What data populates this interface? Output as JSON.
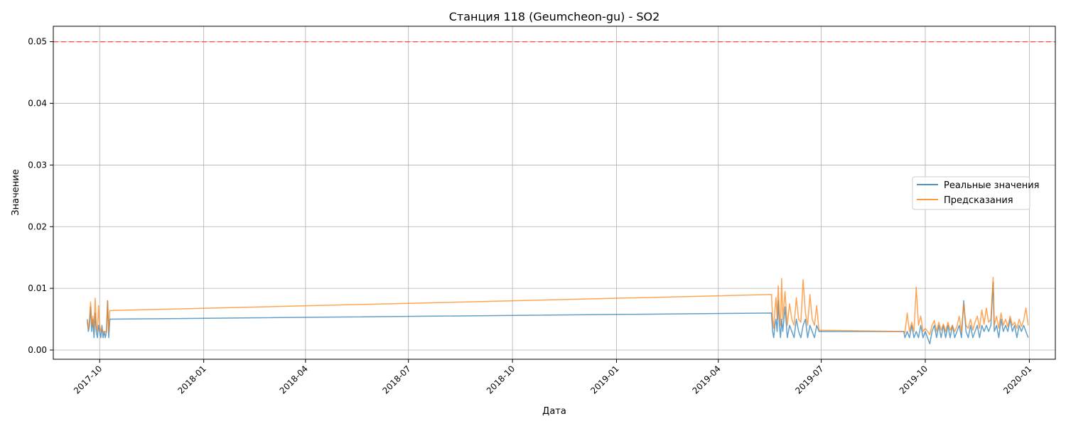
{
  "chart_data": {
    "type": "line",
    "title": "Станция 118 (Geumcheon-gu) - SO2",
    "xlabel": "Дата",
    "ylabel": "Значение",
    "ylim": [
      -0.0015,
      0.0525
    ],
    "xlim": [
      "2017-08-21",
      "2020-01-24"
    ],
    "x_ticks": [
      "2017-10",
      "2018-01",
      "2018-04",
      "2018-07",
      "2018-10",
      "2019-01",
      "2019-04",
      "2019-07",
      "2019-10",
      "2020-01"
    ],
    "x_tick_dates": [
      "2017-10-01",
      "2018-01-01",
      "2018-04-01",
      "2018-07-01",
      "2018-10-01",
      "2019-01-01",
      "2019-04-01",
      "2019-07-01",
      "2019-10-01",
      "2020-01-01"
    ],
    "y_ticks": [
      "0.00",
      "0.01",
      "0.02",
      "0.03",
      "0.04",
      "0.05"
    ],
    "y_tick_values": [
      0,
      0.01,
      0.02,
      0.03,
      0.04,
      0.05
    ],
    "grid": true,
    "legend_position": "right",
    "threshold": {
      "value": 0.05,
      "color": "#ff4040"
    },
    "series": [
      {
        "name": "Реальные значения",
        "color": "#1f77b4",
        "points": [
          [
            "2017-09-20",
            0.005
          ],
          [
            "2017-09-21",
            0.003
          ],
          [
            "2017-09-22",
            0.004
          ],
          [
            "2017-09-23",
            0.007
          ],
          [
            "2017-09-24",
            0.003
          ],
          [
            "2017-09-25",
            0.005
          ],
          [
            "2017-09-26",
            0.002
          ],
          [
            "2017-09-27",
            0.006
          ],
          [
            "2017-09-28",
            0.003
          ],
          [
            "2017-09-29",
            0.002
          ],
          [
            "2017-09-30",
            0.004
          ],
          [
            "2017-10-01",
            0.003
          ],
          [
            "2017-10-02",
            0.002
          ],
          [
            "2017-10-03",
            0.004
          ],
          [
            "2017-10-04",
            0.002
          ],
          [
            "2017-10-05",
            0.003
          ],
          [
            "2017-10-06",
            0.002
          ],
          [
            "2017-10-07",
            0.003
          ],
          [
            "2017-10-08",
            0.008
          ],
          [
            "2017-10-09",
            0.002
          ],
          [
            "2017-10-10",
            0.005
          ],
          [
            "2019-05-18",
            0.006
          ],
          [
            "2019-05-19",
            0.003
          ],
          [
            "2019-05-20",
            0.002
          ],
          [
            "2019-05-21",
            0.004
          ],
          [
            "2019-05-22",
            0.005
          ],
          [
            "2019-05-23",
            0.003
          ],
          [
            "2019-05-24",
            0.008
          ],
          [
            "2019-05-25",
            0.004
          ],
          [
            "2019-05-26",
            0.002
          ],
          [
            "2019-05-27",
            0.005
          ],
          [
            "2019-05-28",
            0.003
          ],
          [
            "2019-05-30",
            0.007
          ],
          [
            "2019-06-01",
            0.002
          ],
          [
            "2019-06-03",
            0.004
          ],
          [
            "2019-06-05",
            0.003
          ],
          [
            "2019-06-07",
            0.002
          ],
          [
            "2019-06-09",
            0.005
          ],
          [
            "2019-06-11",
            0.003
          ],
          [
            "2019-06-13",
            0.002
          ],
          [
            "2019-06-15",
            0.004
          ],
          [
            "2019-06-17",
            0.005
          ],
          [
            "2019-06-19",
            0.002
          ],
          [
            "2019-06-21",
            0.004
          ],
          [
            "2019-06-23",
            0.003
          ],
          [
            "2019-06-25",
            0.002
          ],
          [
            "2019-06-27",
            0.004
          ],
          [
            "2019-06-29",
            0.003
          ],
          [
            "2019-09-12",
            0.003
          ],
          [
            "2019-09-13",
            0.002
          ],
          [
            "2019-09-15",
            0.003
          ],
          [
            "2019-09-17",
            0.002
          ],
          [
            "2019-09-19",
            0.004
          ],
          [
            "2019-09-21",
            0.002
          ],
          [
            "2019-09-23",
            0.003
          ],
          [
            "2019-09-25",
            0.002
          ],
          [
            "2019-09-27",
            0.004
          ],
          [
            "2019-09-29",
            0.002
          ],
          [
            "2019-10-01",
            0.003
          ],
          [
            "2019-10-03",
            0.002
          ],
          [
            "2019-10-05",
            0.001
          ],
          [
            "2019-10-07",
            0.003
          ],
          [
            "2019-10-09",
            0.004
          ],
          [
            "2019-10-11",
            0.002
          ],
          [
            "2019-10-13",
            0.004
          ],
          [
            "2019-10-15",
            0.002
          ],
          [
            "2019-10-17",
            0.004
          ],
          [
            "2019-10-19",
            0.002
          ],
          [
            "2019-10-21",
            0.004
          ],
          [
            "2019-10-23",
            0.002
          ],
          [
            "2019-10-25",
            0.004
          ],
          [
            "2019-10-27",
            0.002
          ],
          [
            "2019-10-29",
            0.003
          ],
          [
            "2019-10-31",
            0.004
          ],
          [
            "2019-11-02",
            0.002
          ],
          [
            "2019-11-04",
            0.008
          ],
          [
            "2019-11-06",
            0.003
          ],
          [
            "2019-11-08",
            0.002
          ],
          [
            "2019-11-10",
            0.004
          ],
          [
            "2019-11-12",
            0.002
          ],
          [
            "2019-11-14",
            0.003
          ],
          [
            "2019-11-16",
            0.004
          ],
          [
            "2019-11-18",
            0.002
          ],
          [
            "2019-11-20",
            0.004
          ],
          [
            "2019-11-22",
            0.003
          ],
          [
            "2019-11-24",
            0.004
          ],
          [
            "2019-11-26",
            0.003
          ],
          [
            "2019-11-28",
            0.004
          ],
          [
            "2019-11-30",
            0.011
          ],
          [
            "2019-12-01",
            0.003
          ],
          [
            "2019-12-03",
            0.004
          ],
          [
            "2019-12-05",
            0.002
          ],
          [
            "2019-12-07",
            0.005
          ],
          [
            "2019-12-09",
            0.003
          ],
          [
            "2019-12-11",
            0.004
          ],
          [
            "2019-12-13",
            0.003
          ],
          [
            "2019-12-15",
            0.005
          ],
          [
            "2019-12-17",
            0.003
          ],
          [
            "2019-12-19",
            0.004
          ],
          [
            "2019-12-21",
            0.002
          ],
          [
            "2019-12-23",
            0.004
          ],
          [
            "2019-12-25",
            0.003
          ],
          [
            "2019-12-27",
            0.004
          ],
          [
            "2019-12-29",
            0.003
          ],
          [
            "2019-12-31",
            0.002
          ]
        ]
      },
      {
        "name": "Предсказания",
        "color": "#ff7f0e",
        "points": [
          [
            "2017-09-20",
            0.0045
          ],
          [
            "2017-09-21",
            0.0035
          ],
          [
            "2017-09-22",
            0.005
          ],
          [
            "2017-09-23",
            0.0078
          ],
          [
            "2017-09-24",
            0.004
          ],
          [
            "2017-09-25",
            0.0055
          ],
          [
            "2017-09-26",
            0.0035
          ],
          [
            "2017-09-27",
            0.0084
          ],
          [
            "2017-09-28",
            0.004
          ],
          [
            "2017-09-29",
            0.003
          ],
          [
            "2017-09-30",
            0.0072
          ],
          [
            "2017-10-01",
            0.004
          ],
          [
            "2017-10-02",
            0.003
          ],
          [
            "2017-10-03",
            0.0035
          ],
          [
            "2017-10-04",
            0.003
          ],
          [
            "2017-10-05",
            0.0028
          ],
          [
            "2017-10-06",
            0.003
          ],
          [
            "2017-10-07",
            0.0028
          ],
          [
            "2017-10-08",
            0.008
          ],
          [
            "2017-10-09",
            0.003
          ],
          [
            "2017-10-10",
            0.0064
          ],
          [
            "2019-05-18",
            0.009
          ],
          [
            "2019-05-19",
            0.005
          ],
          [
            "2019-05-20",
            0.0035
          ],
          [
            "2019-05-21",
            0.0065
          ],
          [
            "2019-05-22",
            0.0085
          ],
          [
            "2019-05-23",
            0.005
          ],
          [
            "2019-05-24",
            0.0104
          ],
          [
            "2019-05-25",
            0.006
          ],
          [
            "2019-05-26",
            0.004
          ],
          [
            "2019-05-27",
            0.0116
          ],
          [
            "2019-05-28",
            0.005
          ],
          [
            "2019-05-30",
            0.0095
          ],
          [
            "2019-06-01",
            0.004
          ],
          [
            "2019-06-03",
            0.0075
          ],
          [
            "2019-06-05",
            0.005
          ],
          [
            "2019-06-07",
            0.004
          ],
          [
            "2019-06-09",
            0.0085
          ],
          [
            "2019-06-11",
            0.005
          ],
          [
            "2019-06-13",
            0.0045
          ],
          [
            "2019-06-15",
            0.0114
          ],
          [
            "2019-06-17",
            0.006
          ],
          [
            "2019-06-19",
            0.004
          ],
          [
            "2019-06-21",
            0.009
          ],
          [
            "2019-06-23",
            0.005
          ],
          [
            "2019-06-25",
            0.004
          ],
          [
            "2019-06-27",
            0.0072
          ],
          [
            "2019-06-29",
            0.0032
          ],
          [
            "2019-09-12",
            0.003
          ],
          [
            "2019-09-13",
            0.0028
          ],
          [
            "2019-09-15",
            0.006
          ],
          [
            "2019-09-17",
            0.003
          ],
          [
            "2019-09-19",
            0.0045
          ],
          [
            "2019-09-21",
            0.003
          ],
          [
            "2019-09-23",
            0.0102
          ],
          [
            "2019-09-25",
            0.004
          ],
          [
            "2019-09-27",
            0.0055
          ],
          [
            "2019-09-29",
            0.003
          ],
          [
            "2019-10-01",
            0.0035
          ],
          [
            "2019-10-03",
            0.003
          ],
          [
            "2019-10-05",
            0.0025
          ],
          [
            "2019-10-07",
            0.004
          ],
          [
            "2019-10-09",
            0.0048
          ],
          [
            "2019-10-11",
            0.003
          ],
          [
            "2019-10-13",
            0.0045
          ],
          [
            "2019-10-15",
            0.0032
          ],
          [
            "2019-10-17",
            0.0042
          ],
          [
            "2019-10-19",
            0.003
          ],
          [
            "2019-10-21",
            0.0045
          ],
          [
            "2019-10-23",
            0.0032
          ],
          [
            "2019-10-25",
            0.004
          ],
          [
            "2019-10-27",
            0.003
          ],
          [
            "2019-10-29",
            0.0038
          ],
          [
            "2019-10-31",
            0.0055
          ],
          [
            "2019-11-02",
            0.003
          ],
          [
            "2019-11-04",
            0.0075
          ],
          [
            "2019-11-06",
            0.004
          ],
          [
            "2019-11-08",
            0.0035
          ],
          [
            "2019-11-10",
            0.005
          ],
          [
            "2019-11-12",
            0.0032
          ],
          [
            "2019-11-14",
            0.0045
          ],
          [
            "2019-11-16",
            0.0055
          ],
          [
            "2019-11-18",
            0.0035
          ],
          [
            "2019-11-20",
            0.0065
          ],
          [
            "2019-11-22",
            0.0042
          ],
          [
            "2019-11-24",
            0.0068
          ],
          [
            "2019-11-26",
            0.0045
          ],
          [
            "2019-11-28",
            0.005
          ],
          [
            "2019-11-30",
            0.0118
          ],
          [
            "2019-12-01",
            0.004
          ],
          [
            "2019-12-03",
            0.0055
          ],
          [
            "2019-12-05",
            0.0035
          ],
          [
            "2019-12-07",
            0.006
          ],
          [
            "2019-12-09",
            0.004
          ],
          [
            "2019-12-11",
            0.005
          ],
          [
            "2019-12-13",
            0.0038
          ],
          [
            "2019-12-15",
            0.0055
          ],
          [
            "2019-12-17",
            0.004
          ],
          [
            "2019-12-19",
            0.0045
          ],
          [
            "2019-12-21",
            0.0035
          ],
          [
            "2019-12-23",
            0.005
          ],
          [
            "2019-12-25",
            0.0038
          ],
          [
            "2019-12-27",
            0.0048
          ],
          [
            "2019-12-29",
            0.0068
          ],
          [
            "2019-12-31",
            0.004
          ]
        ]
      }
    ]
  }
}
